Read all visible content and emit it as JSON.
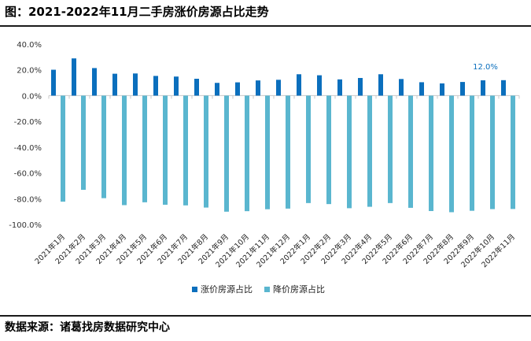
{
  "title": "图：2021-2022年11月二手房涨价房源占比走势",
  "source": "数据来源：诸葛找房数据研究中心",
  "colors": {
    "rise": "#0b6fbd",
    "fall": "#5ab6cf"
  },
  "chart_data": {
    "type": "bar",
    "title": "2021-2022年11月二手房涨价房源占比走势",
    "xlabel": "",
    "ylabel": "",
    "ylim": [
      -100,
      40
    ],
    "yticks": [
      "40.0%",
      "20.0%",
      "0.0%",
      "-20.0%",
      "-40.0%",
      "-60.0%",
      "-80.0%",
      "-100.0%"
    ],
    "ytick_values": [
      40,
      20,
      0,
      -20,
      -40,
      -60,
      -80,
      -100
    ],
    "categories": [
      "2021年1月",
      "2021年2月",
      "2021年3月",
      "2021年4月",
      "2021年5月",
      "2021年6月",
      "2021年7月",
      "2021年8月",
      "2021年9月",
      "2021年10月",
      "2021年11月",
      "2021年12月",
      "2022年1月",
      "2022年2月",
      "2022年3月",
      "2022年4月",
      "2022年5月",
      "2022年6月",
      "2022年7月",
      "2022年8月",
      "2022年9月",
      "2022年10月",
      "2022年11月"
    ],
    "series": [
      {
        "name": "涨价房源占比",
        "values": [
          20.1,
          28.9,
          21.4,
          17.0,
          17.2,
          15.3,
          14.8,
          13.1,
          9.9,
          10.3,
          11.8,
          12.3,
          16.6,
          15.8,
          12.6,
          13.7,
          16.6,
          12.9,
          10.4,
          9.5,
          10.6,
          11.9,
          12.0
        ]
      },
      {
        "name": "降价房源占比",
        "values": [
          -82.3,
          -73.1,
          -79.6,
          -85.0,
          -82.8,
          -84.7,
          -85.2,
          -86.9,
          -90.1,
          -89.7,
          -88.2,
          -87.7,
          -83.4,
          -84.2,
          -87.4,
          -86.3,
          -83.4,
          -87.1,
          -89.6,
          -90.5,
          -89.4,
          -88.1,
          -88.0
        ]
      }
    ],
    "annotations": [
      {
        "category": "2022年11月",
        "series": "涨价房源占比",
        "text": "12.0%"
      }
    ],
    "legend": "bottom-center",
    "grid": false
  }
}
